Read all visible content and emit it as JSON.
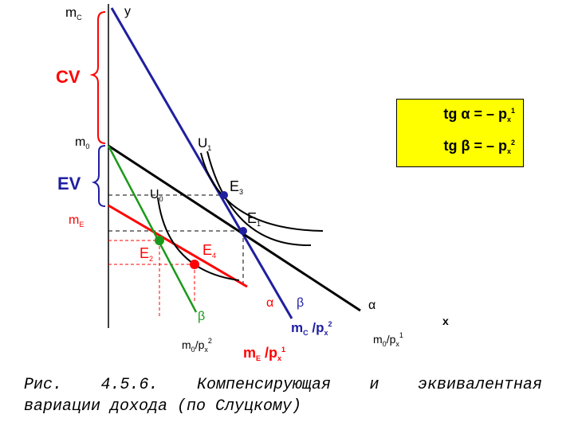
{
  "labels": {
    "m_c_axis": "m",
    "m_c_axis_sub": "C",
    "y_axis": "y",
    "x_axis": "x",
    "cv": "CV",
    "ev": "EV",
    "m0": "m",
    "m0_sub": "0",
    "me": "m",
    "me_sub": "E",
    "u1": "U",
    "u1_sub": "1",
    "u0": "U",
    "u0_sub": "0",
    "e1": "E",
    "e1_sub": "1",
    "e2": "E",
    "e2_sub": "2",
    "e3": "E",
    "e3_sub": "3",
    "e4": "E",
    "e4_sub": "4",
    "alpha_1": "α",
    "beta_1": "β",
    "alpha_2": "α",
    "beta_2": "β",
    "m0_px2": "m",
    "m0_px2_sub": "0",
    "m0_px2_tail": "/p",
    "m0_px2_tsub": "x",
    "m0_px2_tsup": "2",
    "mc_px2": "m",
    "mc_px2_sub": "C",
    "mc_px2_tail": " /p",
    "mc_px2_tsub": "x",
    "mc_px2_tsup": "2",
    "me_px1": "m",
    "me_px1_sub": "E",
    "me_px1_tail": " /p",
    "me_px1_tsub": "x",
    "me_px1_tsup": "1",
    "m0_px1": "m",
    "m0_px1_sub": "0",
    "m0_px1_tail": "/p",
    "m0_px1_tsub": "x",
    "m0_px1_tsup": "1"
  },
  "legend": {
    "line1": "tg α = – p",
    "line1_sub": "x",
    "line1_sup": "1",
    "line2": "tg β = – p",
    "line2_sub": "x",
    "line2_sup": "2"
  },
  "caption": {
    "line1_parts": [
      "Рис.",
      "4.5.6.",
      "Компенсирующая",
      "и",
      "эквивалентная"
    ],
    "line2": "вариации дохода (по Слуцкому)"
  },
  "colors": {
    "blue": "#1f1fa0",
    "black": "#000000",
    "red": "#ff0000",
    "green": "#1a9a1a",
    "legend_bg": "#ffff00"
  }
}
